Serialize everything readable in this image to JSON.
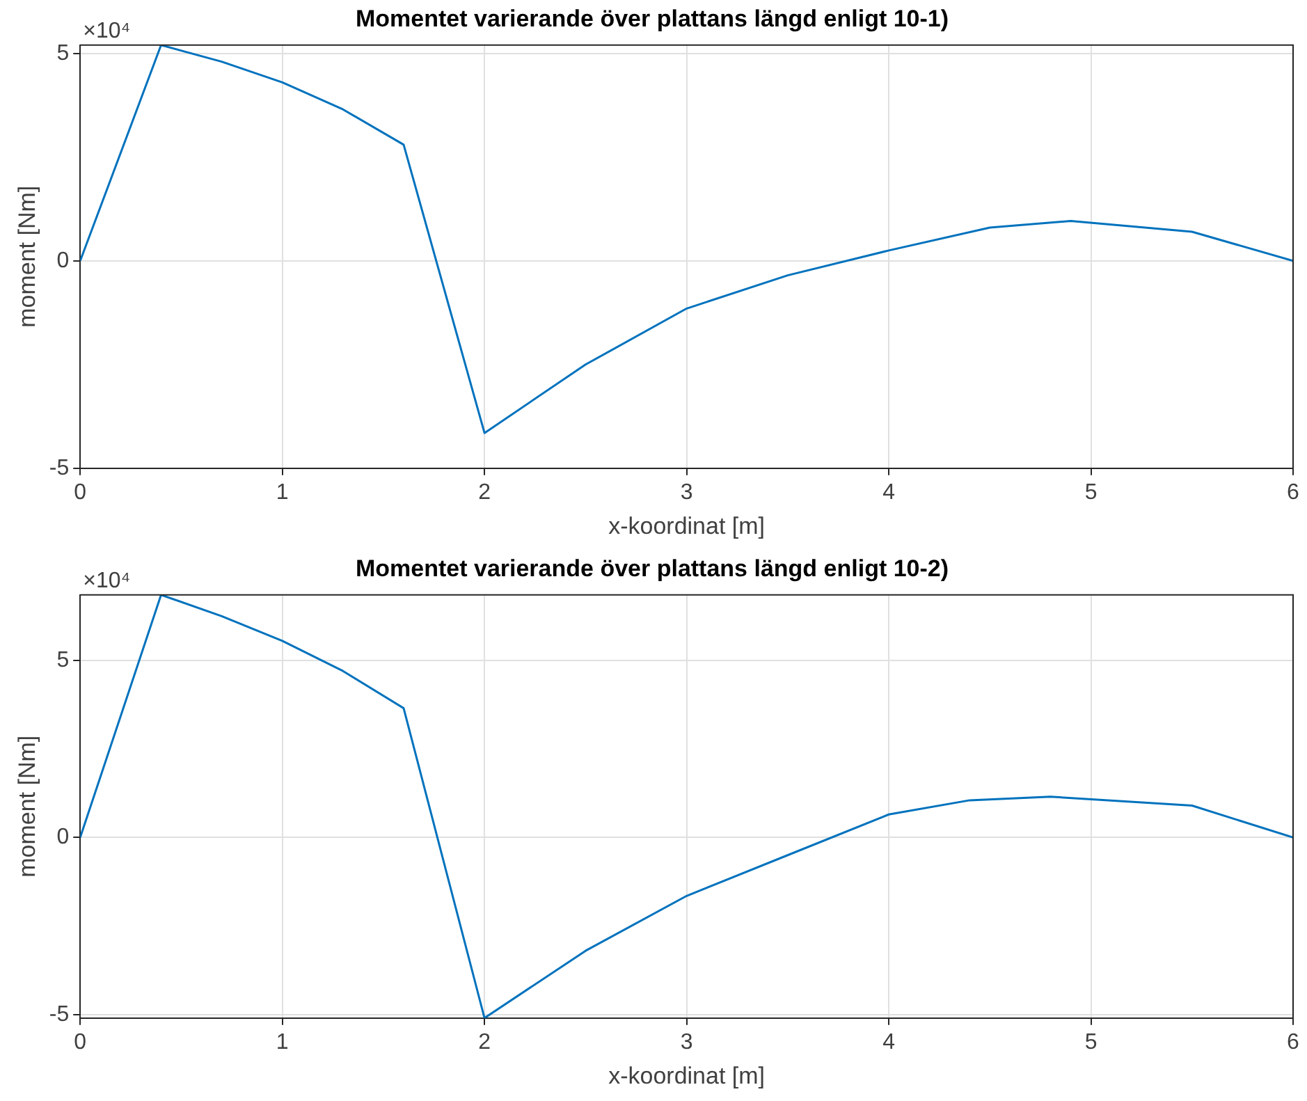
{
  "chart_data": [
    {
      "type": "line",
      "title": "Momentet varierande över plattans längd enligt 10-1)",
      "xlabel": "x-koordinat [m]",
      "ylabel": "moment [Nm]",
      "annotations": [
        "×10⁴"
      ],
      "grid": true,
      "legend": false,
      "marker": "none",
      "line_style": "solid",
      "xlim": [
        0,
        6
      ],
      "xticks": [
        0,
        1,
        2,
        3,
        4,
        5,
        6
      ],
      "ylim": [
        -5,
        5.2
      ],
      "yticks": [
        -5,
        0,
        5
      ],
      "x": [
        0,
        0.4,
        0.7,
        1,
        1.3,
        1.6,
        2,
        2.5,
        3,
        3.5,
        4,
        4.5,
        4.9,
        5.5,
        6
      ],
      "series": [
        {
          "color": "#0072bd",
          "values": [
            0,
            5.2,
            4.8,
            4.3,
            3.65,
            2.8,
            -4.15,
            -2.5,
            -1.15,
            -0.35,
            0.25,
            0.8,
            0.96,
            0.7,
            0
          ]
        }
      ]
    },
    {
      "type": "line",
      "title": "Momentet varierande över plattans längd enligt 10-2)",
      "xlabel": "x-koordinat [m]",
      "ylabel": "moment [Nm]",
      "annotations": [
        "×10⁴"
      ],
      "grid": true,
      "legend": false,
      "marker": "none",
      "line_style": "solid",
      "xlim": [
        0,
        6
      ],
      "xticks": [
        0,
        1,
        2,
        3,
        4,
        5,
        6
      ],
      "ylim": [
        -5.1,
        6.85
      ],
      "yticks": [
        -5,
        0,
        5
      ],
      "x": [
        0,
        0.4,
        0.7,
        1,
        1.3,
        1.6,
        2,
        2.5,
        3,
        3.5,
        4,
        4.4,
        4.8,
        5.5,
        6
      ],
      "series": [
        {
          "color": "#0072bd",
          "values": [
            0,
            6.85,
            6.25,
            5.55,
            4.7,
            3.65,
            -5.1,
            -3.2,
            -1.65,
            -0.5,
            0.65,
            1.05,
            1.15,
            0.9,
            0
          ]
        }
      ]
    }
  ]
}
